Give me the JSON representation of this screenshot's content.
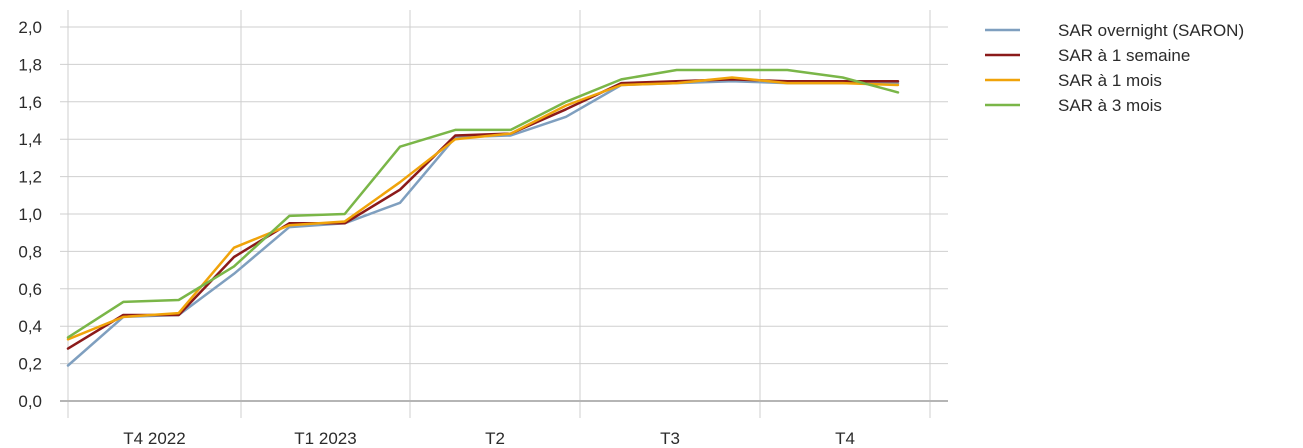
{
  "chart_data": {
    "type": "line",
    "title": "",
    "xlabel": "",
    "ylabel": "",
    "ylim": [
      0,
      2.0
    ],
    "y_ticks": [
      "0,0",
      "0,2",
      "0,4",
      "0,6",
      "0,8",
      "1,0",
      "1,2",
      "1,4",
      "1,6",
      "1,8",
      "2,0"
    ],
    "x_categories": [
      "T4 2022",
      "T1 2023",
      "T2",
      "T3",
      "T4"
    ],
    "grid": true,
    "legend_position": "right",
    "x": [
      0,
      1,
      2,
      3,
      4,
      5,
      6,
      7,
      8,
      9,
      10,
      11,
      12,
      13,
      14,
      15
    ],
    "series": [
      {
        "name": "SAR overnight (SARON)",
        "color": "#7f9fbf",
        "values": [
          0.19,
          0.45,
          0.46,
          0.68,
          0.93,
          0.95,
          1.06,
          1.41,
          1.42,
          1.52,
          1.69,
          1.7,
          1.71,
          1.7,
          1.7,
          1.7
        ]
      },
      {
        "name": "SAR à 1 semaine",
        "color": "#8b1a1a",
        "values": [
          0.28,
          0.46,
          0.46,
          0.77,
          0.95,
          0.95,
          1.13,
          1.42,
          1.43,
          1.56,
          1.7,
          1.71,
          1.72,
          1.71,
          1.71,
          1.71
        ]
      },
      {
        "name": "SAR à 1 mois",
        "color": "#f0a30a",
        "values": [
          0.33,
          0.45,
          0.47,
          0.82,
          0.94,
          0.96,
          1.17,
          1.4,
          1.43,
          1.58,
          1.69,
          1.7,
          1.73,
          1.7,
          1.7,
          1.69
        ]
      },
      {
        "name": "SAR à 3 mois",
        "color": "#7ab648",
        "values": [
          0.34,
          0.53,
          0.54,
          0.72,
          0.99,
          1.0,
          1.36,
          1.45,
          1.45,
          1.6,
          1.72,
          1.77,
          1.77,
          1.77,
          1.73,
          1.65
        ]
      }
    ]
  }
}
